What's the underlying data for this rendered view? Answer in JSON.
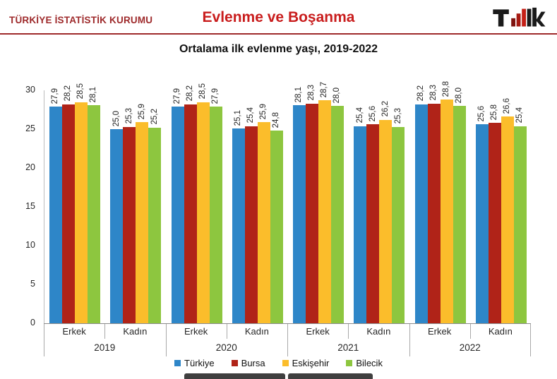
{
  "header": {
    "org": "TÜRKİYE İSTATİSTİK KURUMU",
    "title": "Evlenme ve Boşanma",
    "logo": "tuik-logo"
  },
  "colors": {
    "title_red": "#C91D1D",
    "dark_red": "#9E2A2B",
    "axis_gray": "#A9A9A9",
    "footer_bar": "#3F3F3F"
  },
  "chart_data": {
    "type": "bar",
    "title": "Ortalama ilk evlenme yaşı, 2019-2022",
    "ylim": [
      0,
      30
    ],
    "yticks": [
      0,
      5,
      10,
      15,
      20,
      25,
      30
    ],
    "grid": false,
    "legend_position": "bottom",
    "decimal_separator": ",",
    "value_labels": "rotated-90",
    "series": [
      {
        "name": "Türkiye",
        "color": "#2E86C8"
      },
      {
        "name": "Bursa",
        "color": "#B02318"
      },
      {
        "name": "Eskişehir",
        "color": "#FBBD2B"
      },
      {
        "name": "Bilecik",
        "color": "#8DC63F"
      }
    ],
    "groups": [
      {
        "year": "2019",
        "subgroups": [
          {
            "label": "Erkek",
            "values": [
              27.9,
              28.2,
              28.5,
              28.1
            ]
          },
          {
            "label": "Kadın",
            "values": [
              25.0,
              25.3,
              25.9,
              25.2
            ]
          }
        ]
      },
      {
        "year": "2020",
        "subgroups": [
          {
            "label": "Erkek",
            "values": [
              27.9,
              28.2,
              28.5,
              27.9
            ]
          },
          {
            "label": "Kadın",
            "values": [
              25.1,
              25.4,
              25.9,
              24.8
            ]
          }
        ]
      },
      {
        "year": "2021",
        "subgroups": [
          {
            "label": "Erkek",
            "values": [
              28.1,
              28.3,
              28.7,
              28.0
            ]
          },
          {
            "label": "Kadın",
            "values": [
              25.4,
              25.6,
              26.2,
              25.3
            ]
          }
        ]
      },
      {
        "year": "2022",
        "subgroups": [
          {
            "label": "Erkek",
            "values": [
              28.2,
              28.3,
              28.8,
              28.0
            ]
          },
          {
            "label": "Kadın",
            "values": [
              25.6,
              25.8,
              26.6,
              25.4
            ]
          }
        ]
      }
    ]
  }
}
